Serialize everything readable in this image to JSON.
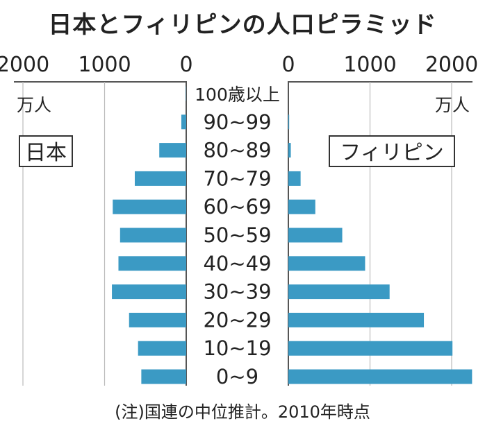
{
  "title": "日本とフィリピンの人口ピラミッド",
  "note": "(注)国連の中位推計。2010年時点",
  "colors": {
    "bar": "#3b9ac4",
    "axis": "#555555",
    "text": "#222222"
  },
  "chart_data": {
    "type": "bar",
    "orientation": "horizontal-butterfly",
    "title": "日本とフィリピンの人口ピラミッド",
    "unit": "万人",
    "left_xlim": [
      0,
      2000
    ],
    "right_xlim": [
      0,
      2000
    ],
    "left_ticks": [
      "2000",
      "1000",
      "0"
    ],
    "right_ticks": [
      "0",
      "1000",
      "2000"
    ],
    "categories": [
      "100歳以上",
      "90~99",
      "80~89",
      "70~79",
      "60~69",
      "50~59",
      "40~49",
      "30~39",
      "20~29",
      "10~19",
      "0~9"
    ],
    "series": [
      {
        "name": "日本",
        "side": "left",
        "values": [
          4,
          60,
          330,
          630,
          900,
          810,
          830,
          910,
          700,
          590,
          550
        ]
      },
      {
        "name": "フィリピン",
        "side": "right",
        "values": [
          0.5,
          10,
          30,
          150,
          330,
          660,
          940,
          1240,
          1660,
          2010,
          2250
        ]
      }
    ]
  }
}
